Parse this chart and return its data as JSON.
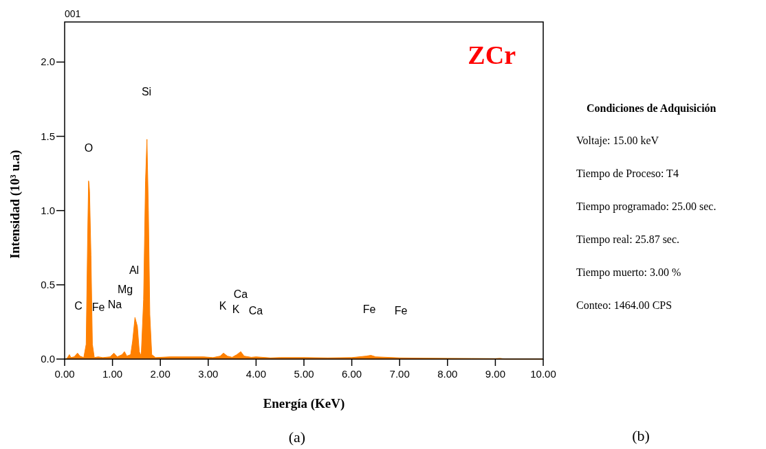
{
  "chart_data": [
    {
      "type": "area",
      "title": "001",
      "xlabel": "Energía (KeV)",
      "ylabel": "Intensidad (10³ u.a)",
      "series": [
        {
          "color": "#ff8000",
          "x": [
            0.0,
            0.05,
            0.1,
            0.13,
            0.2,
            0.27,
            0.32,
            0.4,
            0.45,
            0.48,
            0.5,
            0.51,
            0.52,
            0.55,
            0.58,
            0.62,
            0.7,
            0.8,
            0.95,
            1.03,
            1.1,
            1.2,
            1.25,
            1.3,
            1.38,
            1.42,
            1.47,
            1.52,
            1.56,
            1.6,
            1.65,
            1.69,
            1.72,
            1.75,
            1.78,
            1.82,
            1.9,
            2.2,
            2.5,
            2.9,
            3.1,
            3.25,
            3.32,
            3.4,
            3.5,
            3.6,
            3.68,
            3.75,
            3.9,
            4.0,
            4.3,
            4.5,
            5.0,
            5.5,
            6.0,
            6.3,
            6.4,
            6.5,
            7.0,
            7.5,
            8.0,
            8.5,
            9.0,
            9.1,
            9.2,
            10.0
          ],
          "values": [
            0.0,
            0.005,
            0.03,
            0.01,
            0.015,
            0.04,
            0.02,
            0.01,
            0.1,
            0.8,
            1.2,
            1.18,
            1.13,
            0.7,
            0.1,
            0.01,
            0.015,
            0.01,
            0.015,
            0.04,
            0.015,
            0.03,
            0.05,
            0.02,
            0.03,
            0.12,
            0.28,
            0.22,
            0.05,
            0.02,
            0.4,
            1.2,
            1.48,
            1.0,
            0.3,
            0.03,
            0.01,
            0.015,
            0.015,
            0.015,
            0.01,
            0.02,
            0.04,
            0.02,
            0.012,
            0.03,
            0.05,
            0.02,
            0.012,
            0.015,
            0.008,
            0.01,
            0.01,
            0.008,
            0.01,
            0.02,
            0.025,
            0.015,
            0.008,
            0.006,
            0.005,
            0.004,
            0.003,
            0.005,
            0.0,
            0.0
          ]
        }
      ],
      "xlim": [
        0,
        10
      ],
      "ylim": [
        0,
        2.27
      ],
      "xticks": [
        {
          "value": 0,
          "label": "0.00"
        },
        {
          "value": 1,
          "label": "1.00"
        },
        {
          "value": 2,
          "label": "2.00"
        },
        {
          "value": 3,
          "label": "3.00"
        },
        {
          "value": 4,
          "label": "4.00"
        },
        {
          "value": 5,
          "label": "5.00"
        },
        {
          "value": 6,
          "label": "6.00"
        },
        {
          "value": 7,
          "label": "7.00"
        },
        {
          "value": 8,
          "label": "8.00"
        },
        {
          "value": 9,
          "label": "9.00"
        },
        {
          "value": 10,
          "label": "10.00"
        }
      ],
      "yticks": [
        {
          "value": 0,
          "label": "0.0"
        },
        {
          "value": 0.5,
          "label": "0.5"
        },
        {
          "value": 1,
          "label": "1.0"
        },
        {
          "value": 1.5,
          "label": "1.5"
        },
        {
          "value": 2,
          "label": "2.0"
        }
      ],
      "grid": false,
      "annotations": [
        "C",
        "Fe",
        "Na",
        "Mg",
        "Al",
        "Si",
        "O",
        "K",
        "Ca",
        "K",
        "Ca",
        "Fe",
        "Fe",
        "ZCr",
        "(a)"
      ]
    },
    {
      "type": "other",
      "title": "Condiciones de Adquisición",
      "annotations": [
        "Voltaje: 15.00 keV",
        "Tiempo de Proceso: T4",
        "Tiempo programado: 25.00 sec.",
        "Tiempo real: 25.87 sec.",
        "Tiempo muerto: 3.00 %",
        "Conteo: 1464.00 CPS",
        "(b)"
      ]
    }
  ]
}
